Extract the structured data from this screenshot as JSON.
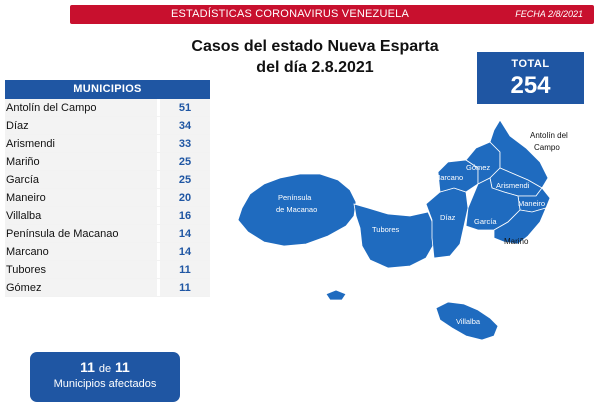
{
  "header": {
    "title": "ESTADÍSTICAS CORONAVIRUS VENEZUELA",
    "date": "FECHA 2/8/2021",
    "accent_color": "#c8102e"
  },
  "report": {
    "title_line1": "Casos del estado Nueva Esparta",
    "title_line2": "del día 2.8.2021"
  },
  "total": {
    "label": "TOTAL",
    "value": "254",
    "color": "#1f56a3"
  },
  "table": {
    "header": "MUNICIPIOS",
    "rows": [
      {
        "name": "Antolín del Campo",
        "value": "51"
      },
      {
        "name": "Díaz",
        "value": "34"
      },
      {
        "name": "Arismendi",
        "value": "33"
      },
      {
        "name": "Mariño",
        "value": "25"
      },
      {
        "name": "García",
        "value": "25"
      },
      {
        "name": "Maneiro",
        "value": "20"
      },
      {
        "name": "Villalba",
        "value": "16"
      },
      {
        "name": "Península de Macanao",
        "value": "14"
      },
      {
        "name": "Marcano",
        "value": "14"
      },
      {
        "name": "Tubores",
        "value": "11"
      },
      {
        "name": "Gómez",
        "value": "11"
      }
    ]
  },
  "affected": {
    "count": "11",
    "of_word": "de",
    "total": "11",
    "label": "Municipios afectados"
  },
  "map": {
    "labels": {
      "macanao_1": "Península",
      "macanao_2": "de Macanao",
      "tubores": "Tubores",
      "diaz": "Díaz",
      "garcia": "García",
      "marcano": "Marcano",
      "gomez": "Gómez",
      "arismendi": "Arismendi",
      "maneiro": "Maneiro",
      "marino": "Mariño",
      "antolin_1": "Antolín del",
      "antolin_2": "Campo",
      "villalba": "Villalba"
    },
    "fill_color": "#1f6bbf"
  }
}
